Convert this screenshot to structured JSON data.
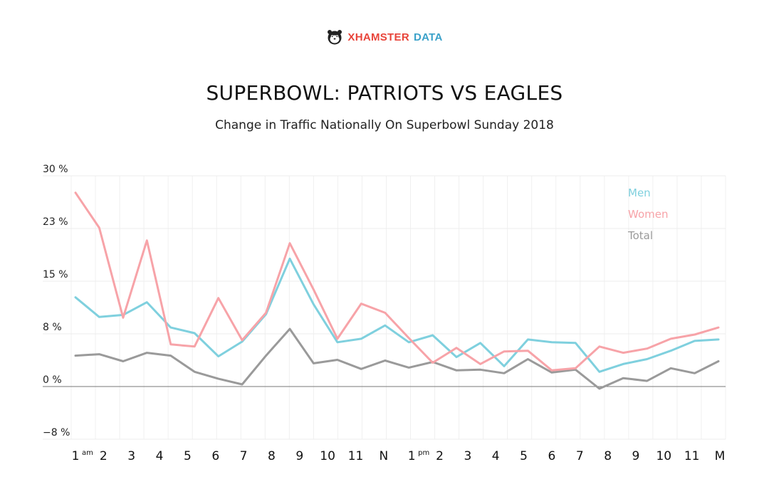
{
  "brand": {
    "name_red": "XHAMSTER",
    "name_blue": "DATA",
    "logo_icon": "hamster-icon"
  },
  "chart_data": {
    "type": "line",
    "title": "SUPERBOWL: PATRIOTS VS EAGLES",
    "subtitle": "Change in Traffic Nationally On Superbowl Sunday 2018",
    "xlabel": "",
    "ylabel": "",
    "y_ticks": [
      "30 %",
      "23 %",
      "15 %",
      "8 %",
      "0 %",
      "−8 %"
    ],
    "y_tick_values": [
      30,
      22.5,
      15,
      7.5,
      0,
      -7.5
    ],
    "ylim": [
      -7.5,
      30
    ],
    "x_ticks": [
      "1",
      "2",
      "3",
      "4",
      "5",
      "6",
      "7",
      "8",
      "9",
      "10",
      "11",
      "N",
      "1",
      "2",
      "3",
      "4",
      "5",
      "6",
      "7",
      "8",
      "9",
      "10",
      "11",
      "M"
    ],
    "x_tick_sup": {
      "0": "am",
      "12": "pm"
    },
    "grid": true,
    "legend": "top-right",
    "series": [
      {
        "name": "Men",
        "color": "#7fd0de",
        "values": [
          12.7,
          9.9,
          10.2,
          12.0,
          8.4,
          7.6,
          4.3,
          6.4,
          10.3,
          18.2,
          11.7,
          6.3,
          6.8,
          8.7,
          6.3,
          7.3,
          4.2,
          6.2,
          2.9,
          6.7,
          6.3,
          6.2,
          2.1,
          3.2,
          3.9,
          5.1,
          6.5,
          6.7
        ]
      },
      {
        "name": "Women",
        "color": "#f7a3a8",
        "values": [
          27.6,
          22.6,
          9.8,
          20.8,
          6.0,
          5.7,
          12.6,
          6.6,
          10.5,
          20.4,
          13.8,
          6.8,
          11.8,
          10.5,
          6.9,
          3.4,
          5.5,
          3.2,
          5.0,
          5.1,
          2.3,
          2.6,
          5.7,
          4.8,
          5.4,
          6.8,
          7.4,
          8.4
        ]
      },
      {
        "name": "Total",
        "color": "#9a9a9a",
        "values": [
          4.4,
          4.6,
          3.6,
          4.8,
          4.4,
          2.1,
          1.1,
          0.3,
          4.4,
          8.2,
          3.3,
          3.8,
          2.5,
          3.7,
          2.7,
          3.5,
          2.3,
          2.4,
          1.9,
          3.9,
          2.0,
          2.4,
          -0.3,
          1.2,
          0.8,
          2.6,
          1.9,
          3.6
        ]
      }
    ]
  }
}
